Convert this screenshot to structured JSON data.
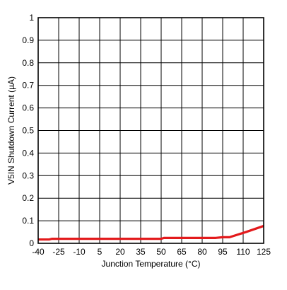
{
  "chart_data": {
    "type": "line",
    "title": "",
    "xlabel": "Junction Temperature (°C)",
    "ylabel": "V5IN Shutdown Current (µA)",
    "xlim": [
      -40,
      125
    ],
    "ylim": [
      0,
      1
    ],
    "x_ticks": [
      "-40",
      "-25",
      "-10",
      "5",
      "20",
      "35",
      "50",
      "65",
      "80",
      "95",
      "110",
      "125"
    ],
    "y_ticks": [
      "0",
      "0.1",
      "0.2",
      "0.3",
      "0.4",
      "0.5",
      "0.6",
      "0.7",
      "0.8",
      "0.9",
      "1"
    ],
    "grid": true,
    "series": [
      {
        "color": "#e31a1c",
        "x": [
          -40,
          -32,
          -30,
          10,
          50,
          52,
          60,
          90,
          95,
          100,
          112,
          125
        ],
        "y": [
          0.017,
          0.017,
          0.02,
          0.02,
          0.02,
          0.024,
          0.024,
          0.024,
          0.027,
          0.027,
          0.05,
          0.077
        ]
      }
    ]
  }
}
